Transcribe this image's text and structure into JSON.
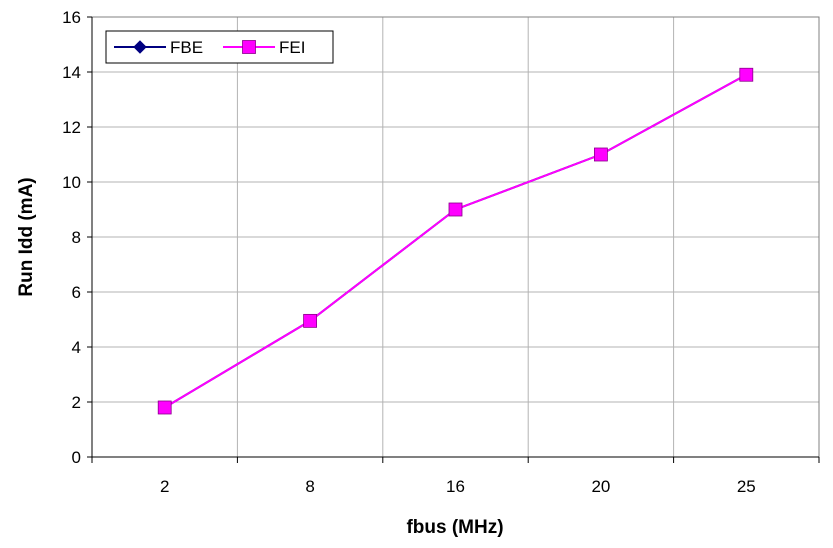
{
  "chart_data": {
    "type": "line",
    "title": "",
    "xlabel": "fbus (MHz)",
    "ylabel": "Run Idd (mA)",
    "categories": [
      "2",
      "8",
      "16",
      "20",
      "25"
    ],
    "ylim": [
      0,
      16
    ],
    "yticks": [
      0,
      2,
      4,
      6,
      8,
      10,
      12,
      14,
      16
    ],
    "grid": true,
    "legend_position": "top-left",
    "series": [
      {
        "name": "FBE",
        "color": "#000080",
        "marker": "diamond",
        "values": [
          1.8,
          4.95,
          9.0,
          11.0,
          13.9
        ]
      },
      {
        "name": "FEI",
        "color": "#FF00FF",
        "marker": "square",
        "values": [
          1.8,
          4.95,
          9.0,
          11.0,
          13.9
        ]
      }
    ]
  }
}
